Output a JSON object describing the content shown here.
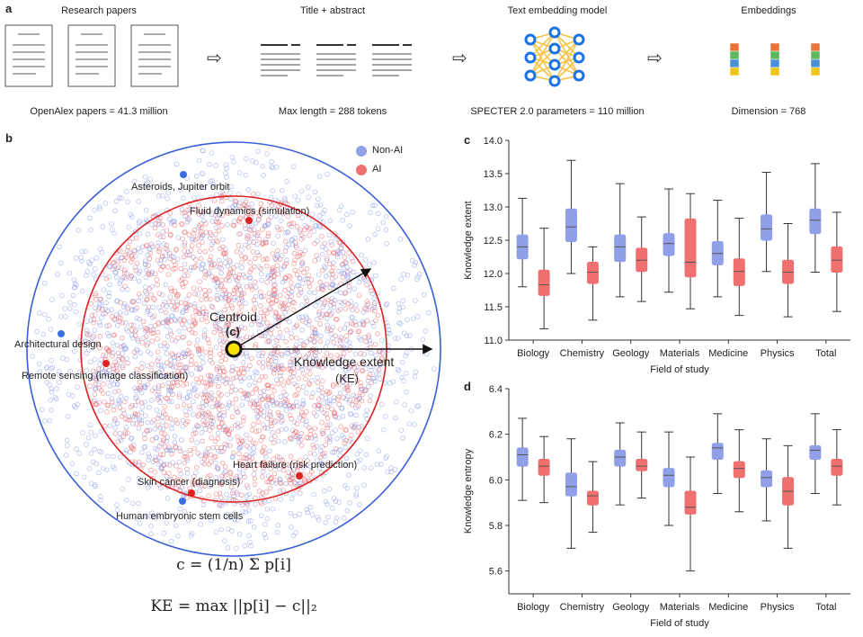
{
  "panel_a": {
    "letter": "a",
    "stages": [
      {
        "title": "Research papers",
        "subtitle": "OpenAlex papers = 41.3 million"
      },
      {
        "title": "Title + abstract",
        "subtitle": "Max length = 288 tokens"
      },
      {
        "title": "Text embedding model",
        "subtitle": "SPECTER 2.0 parameters = 110 million"
      },
      {
        "title": "Embeddings",
        "subtitle": "Dimension = 768"
      }
    ],
    "arrow_glyph": "⇨",
    "colors": {
      "node": "#1a73e8",
      "edge": "#f5c244",
      "embedding_blocks": [
        "#e8743b",
        "#5cb85c",
        "#4a90d9",
        "#f0c419"
      ]
    }
  },
  "panel_b": {
    "letter": "b",
    "legend": [
      {
        "label": "Non-AI",
        "color": "#8fa0e8"
      },
      {
        "label": "AI",
        "color": "#f07070"
      }
    ],
    "annotations": [
      {
        "text": "Asteroids, Jupiter orbit",
        "group": "Non-AI"
      },
      {
        "text": "Fluid dynamics (simulation)",
        "group": "AI"
      },
      {
        "text": "Architectural design",
        "group": "Non-AI"
      },
      {
        "text": "Remote sensing (image classification)",
        "group": "AI"
      },
      {
        "text": "Heart failure (risk prediction)",
        "group": "AI"
      },
      {
        "text": "Skin cancer (diagnosis)",
        "group": "AI"
      },
      {
        "text": "Human embryonic stem cells",
        "group": "Non-AI"
      }
    ],
    "centroid_label": "Centroid",
    "centroid_symbol": "(c)",
    "ke_label": "Knowledge extent",
    "ke_symbol": "(KE)",
    "outer_circle_color": "#3a5fd9",
    "inner_circle_color": "#e02020",
    "formula_centroid": "c = (1/n) Σ p[i]",
    "formula_ke": "KE = max ||p[i] − c||₂"
  },
  "chart_data": [
    {
      "type": "box",
      "panel": "c",
      "xlabel": "Field of study",
      "ylabel": "Knowledge extent",
      "ylim": [
        11.0,
        14.0
      ],
      "yticks": [
        11.0,
        11.5,
        12.0,
        12.5,
        13.0,
        13.5,
        14.0
      ],
      "categories": [
        "Biology",
        "Chemistry",
        "Geology",
        "Materials",
        "Medicine",
        "Physics",
        "Total"
      ],
      "series": [
        {
          "name": "Non-AI",
          "color": "#8fa0e8",
          "boxes": [
            {
              "min": 11.8,
              "q1": 12.22,
              "median": 12.4,
              "q3": 12.58,
              "max": 13.13
            },
            {
              "min": 12.0,
              "q1": 12.48,
              "median": 12.7,
              "q3": 12.97,
              "max": 13.7
            },
            {
              "min": 11.65,
              "q1": 12.18,
              "median": 12.4,
              "q3": 12.58,
              "max": 13.35
            },
            {
              "min": 11.72,
              "q1": 12.27,
              "median": 12.45,
              "q3": 12.6,
              "max": 13.27
            },
            {
              "min": 11.65,
              "q1": 12.13,
              "median": 12.3,
              "q3": 12.48,
              "max": 13.1
            },
            {
              "min": 12.03,
              "q1": 12.5,
              "median": 12.67,
              "q3": 12.88,
              "max": 13.52
            },
            {
              "min": 12.02,
              "q1": 12.6,
              "median": 12.8,
              "q3": 12.97,
              "max": 13.65
            }
          ]
        },
        {
          "name": "AI",
          "color": "#f07070",
          "boxes": [
            {
              "min": 11.17,
              "q1": 11.67,
              "median": 11.83,
              "q3": 12.05,
              "max": 12.68
            },
            {
              "min": 11.3,
              "q1": 11.85,
              "median": 12.02,
              "q3": 12.17,
              "max": 12.4
            },
            {
              "min": 11.58,
              "q1": 12.03,
              "median": 12.2,
              "q3": 12.38,
              "max": 12.85
            },
            {
              "min": 11.47,
              "q1": 11.95,
              "median": 12.17,
              "q3": 12.82,
              "max": 13.2
            },
            {
              "min": 11.37,
              "q1": 11.82,
              "median": 12.03,
              "q3": 12.22,
              "max": 12.83
            },
            {
              "min": 11.35,
              "q1": 11.85,
              "median": 12.02,
              "q3": 12.2,
              "max": 12.75
            },
            {
              "min": 11.43,
              "q1": 12.02,
              "median": 12.2,
              "q3": 12.4,
              "max": 12.92
            }
          ]
        }
      ]
    },
    {
      "type": "box",
      "panel": "d",
      "xlabel": "Field of study",
      "ylabel": "Knowledge entropy",
      "ylim": [
        5.5,
        6.4
      ],
      "yticks": [
        5.6,
        5.8,
        6.0,
        6.2,
        6.4
      ],
      "categories": [
        "Biology",
        "Chemistry",
        "Geology",
        "Materials",
        "Medicine",
        "Physics",
        "Total"
      ],
      "series": [
        {
          "name": "Non-AI",
          "color": "#8fa0e8",
          "boxes": [
            {
              "min": 5.91,
              "q1": 6.06,
              "median": 6.11,
              "q3": 6.14,
              "max": 6.27
            },
            {
              "min": 5.7,
              "q1": 5.93,
              "median": 5.97,
              "q3": 6.03,
              "max": 6.18
            },
            {
              "min": 5.89,
              "q1": 6.06,
              "median": 6.1,
              "q3": 6.13,
              "max": 6.25
            },
            {
              "min": 5.8,
              "q1": 5.97,
              "median": 6.02,
              "q3": 6.05,
              "max": 6.21
            },
            {
              "min": 5.94,
              "q1": 6.09,
              "median": 6.14,
              "q3": 6.16,
              "max": 6.29
            },
            {
              "min": 5.82,
              "q1": 5.97,
              "median": 6.01,
              "q3": 6.04,
              "max": 6.18
            },
            {
              "min": 5.94,
              "q1": 6.09,
              "median": 6.13,
              "q3": 6.15,
              "max": 6.29
            }
          ]
        },
        {
          "name": "AI",
          "color": "#f07070",
          "boxes": [
            {
              "min": 5.9,
              "q1": 6.02,
              "median": 6.06,
              "q3": 6.09,
              "max": 6.19
            },
            {
              "min": 5.77,
              "q1": 5.89,
              "median": 5.93,
              "q3": 5.95,
              "max": 6.08
            },
            {
              "min": 5.92,
              "q1": 6.04,
              "median": 6.06,
              "q3": 6.09,
              "max": 6.21
            },
            {
              "min": 5.6,
              "q1": 5.85,
              "median": 5.88,
              "q3": 5.95,
              "max": 6.1
            },
            {
              "min": 5.86,
              "q1": 6.01,
              "median": 6.05,
              "q3": 6.08,
              "max": 6.22
            },
            {
              "min": 5.7,
              "q1": 5.89,
              "median": 5.95,
              "q3": 6.01,
              "max": 6.15
            },
            {
              "min": 5.89,
              "q1": 6.02,
              "median": 6.06,
              "q3": 6.09,
              "max": 6.22
            }
          ]
        }
      ]
    }
  ]
}
